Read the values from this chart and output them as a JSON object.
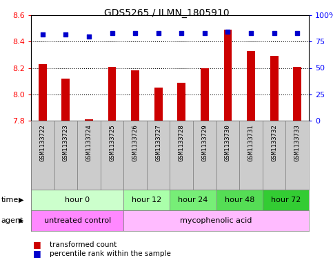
{
  "title": "GDS5265 / ILMN_1805910",
  "samples": [
    "GSM1133722",
    "GSM1133723",
    "GSM1133724",
    "GSM1133725",
    "GSM1133726",
    "GSM1133727",
    "GSM1133728",
    "GSM1133729",
    "GSM1133730",
    "GSM1133731",
    "GSM1133732",
    "GSM1133733"
  ],
  "bar_values": [
    8.23,
    8.12,
    7.81,
    8.21,
    8.18,
    8.05,
    8.09,
    8.2,
    8.49,
    8.33,
    8.29,
    8.21
  ],
  "percentile_values": [
    82,
    82,
    80,
    83,
    83,
    83,
    83,
    83,
    84,
    83,
    83,
    83
  ],
  "bar_bottom": 7.8,
  "ylim": [
    7.8,
    8.6
  ],
  "right_ylim": [
    0,
    100
  ],
  "right_yticks": [
    0,
    25,
    50,
    75,
    100
  ],
  "right_yticklabels": [
    "0",
    "25",
    "50",
    "75",
    "100%"
  ],
  "left_yticks": [
    7.8,
    8.0,
    8.2,
    8.4,
    8.6
  ],
  "bar_color": "#cc0000",
  "dot_color": "#0000cc",
  "time_groups": [
    {
      "label": "hour 0",
      "start": 0,
      "end": 4,
      "color": "#ccffcc"
    },
    {
      "label": "hour 12",
      "start": 4,
      "end": 6,
      "color": "#aaffaa"
    },
    {
      "label": "hour 24",
      "start": 6,
      "end": 8,
      "color": "#77ee77"
    },
    {
      "label": "hour 48",
      "start": 8,
      "end": 10,
      "color": "#55dd55"
    },
    {
      "label": "hour 72",
      "start": 10,
      "end": 12,
      "color": "#33cc33"
    }
  ],
  "agent_groups": [
    {
      "label": "untreated control",
      "start": 0,
      "end": 4,
      "color": "#ff88ff"
    },
    {
      "label": "mycophenolic acid",
      "start": 4,
      "end": 12,
      "color": "#ffbbff"
    }
  ],
  "legend_bar_label": "transformed count",
  "legend_dot_label": "percentile rank within the sample",
  "time_label": "time",
  "agent_label": "agent",
  "label_bg_color": "#cccccc"
}
